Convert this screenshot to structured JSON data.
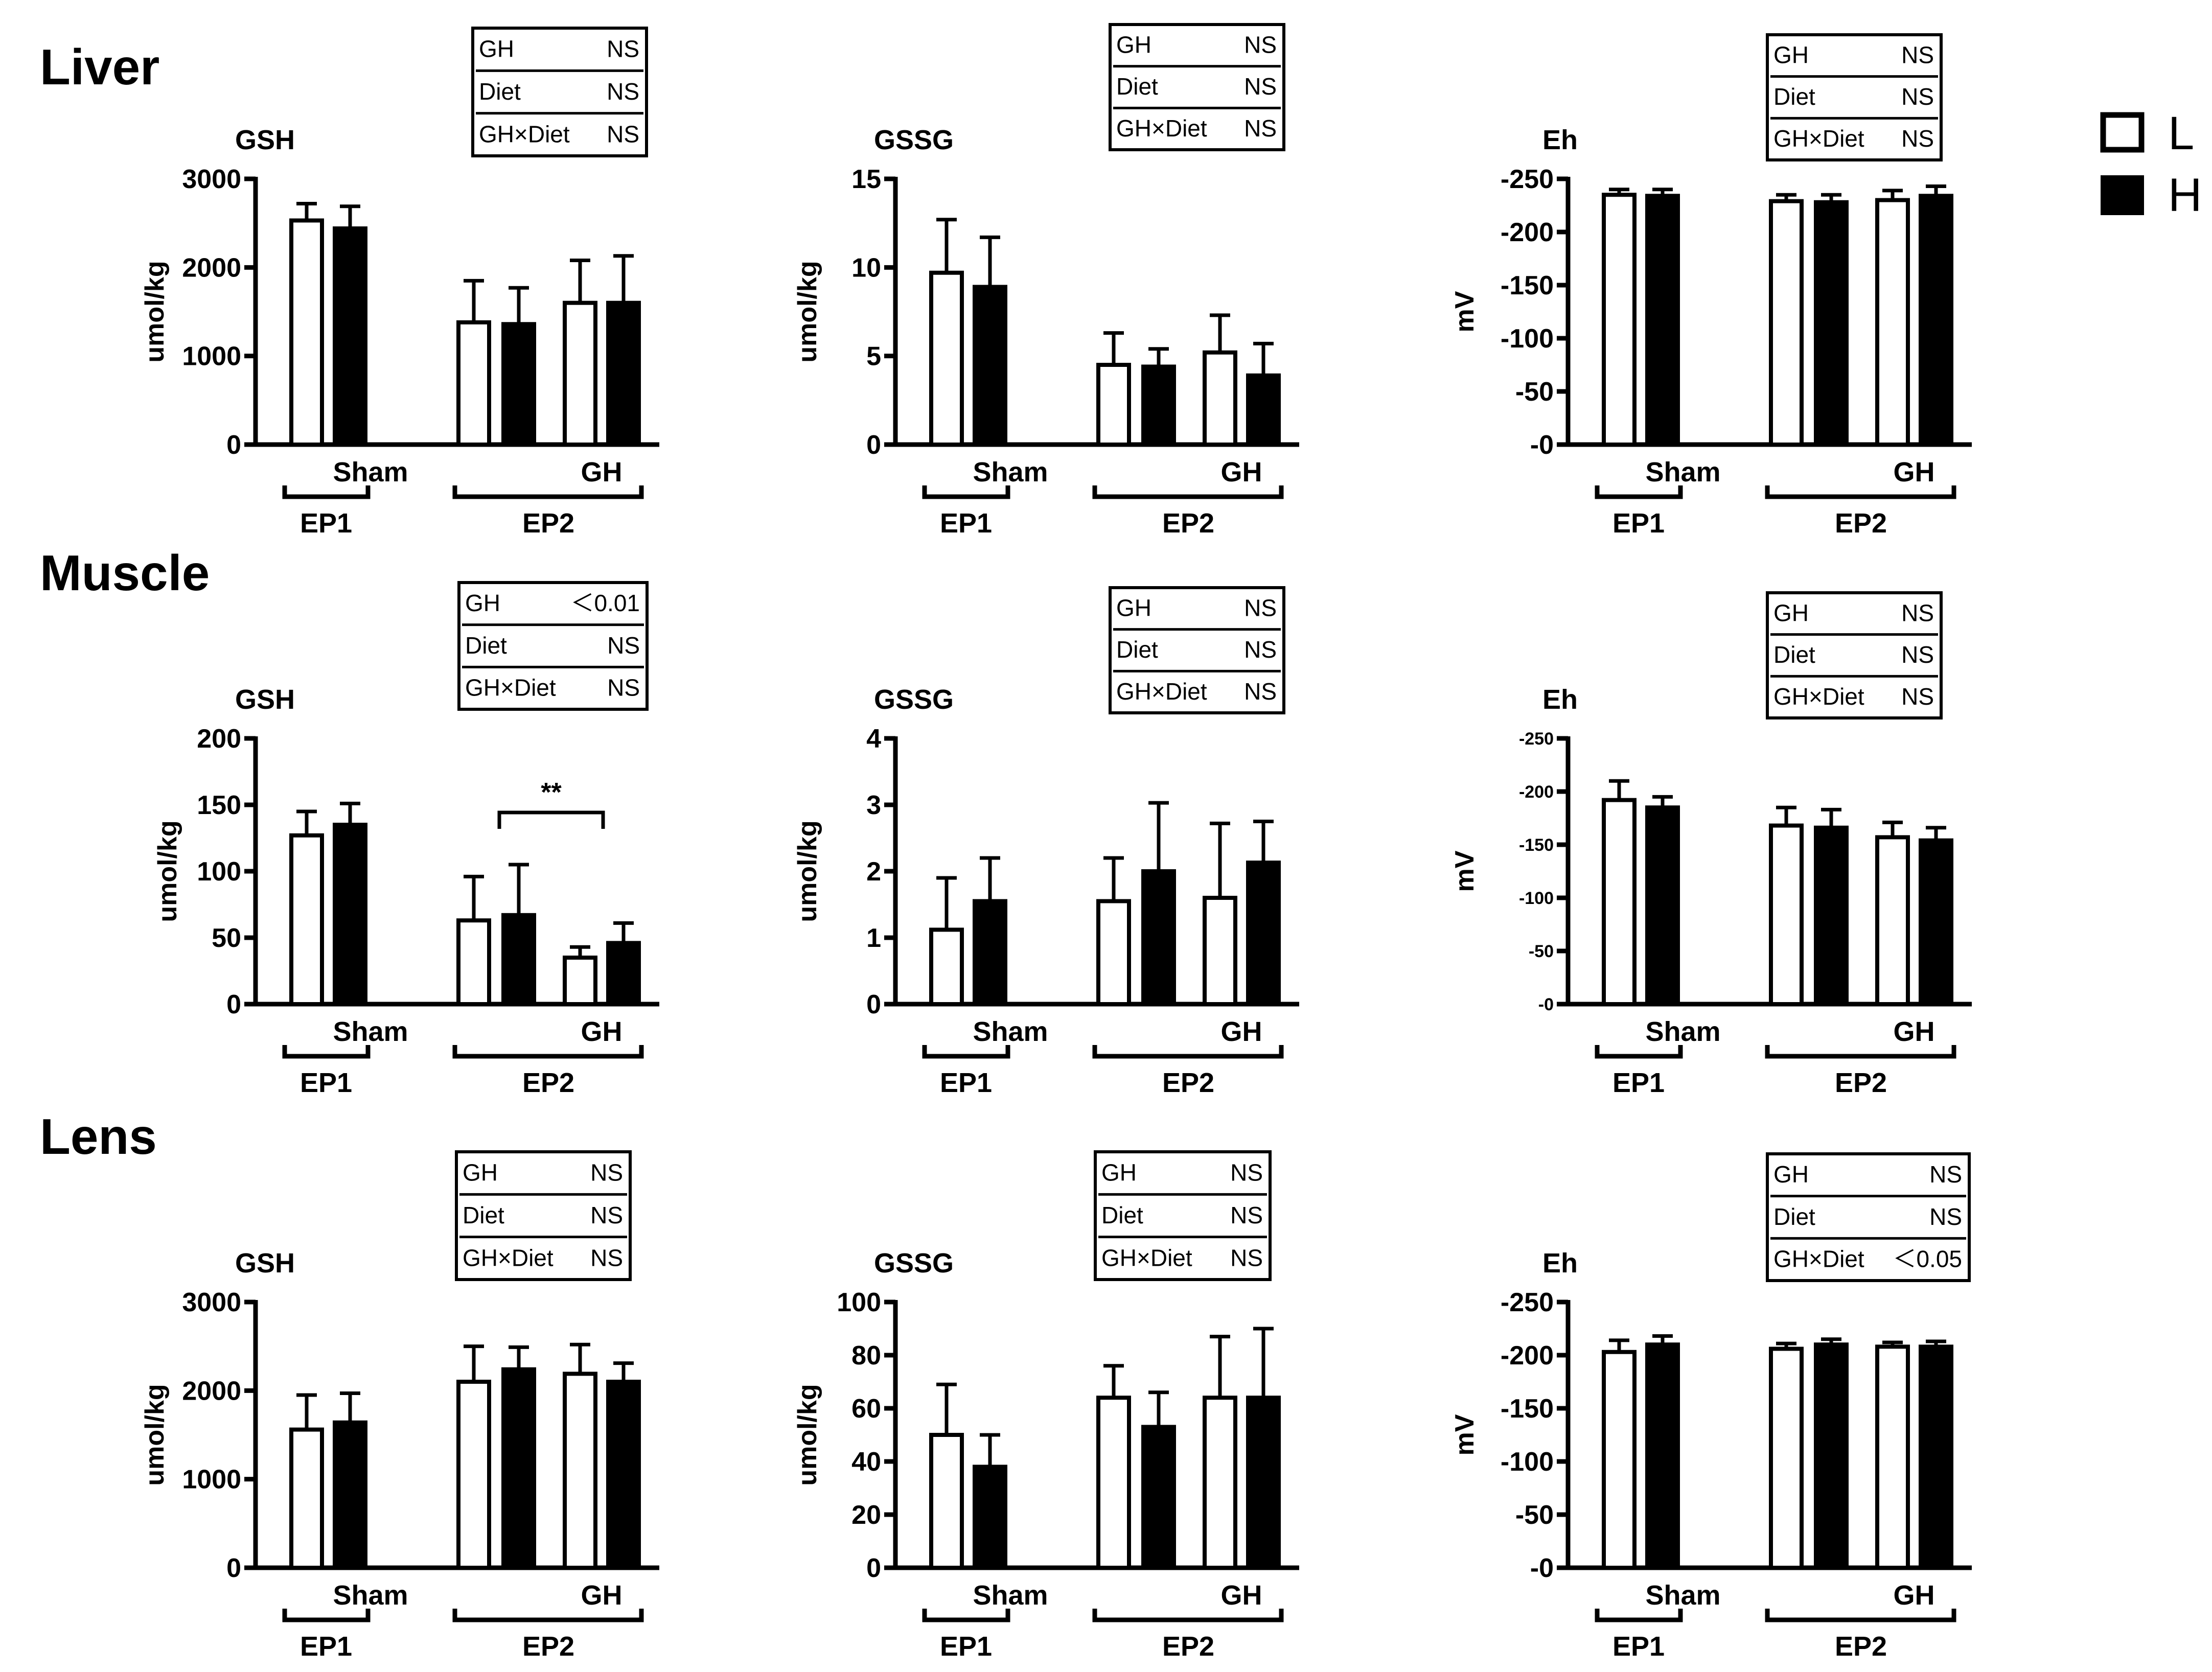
{
  "sections": [
    "Liver",
    "Muscle",
    "Lens"
  ],
  "legend": {
    "items": [
      {
        "label": "L",
        "fill": "#ffffff"
      },
      {
        "label": "H",
        "fill": "#000000"
      }
    ]
  },
  "group_labels": {
    "ep1": "EP1",
    "ep2": "EP2",
    "sham": "Sham",
    "gh": "GH"
  },
  "chart_data": [
    {
      "type": "bar",
      "section": "Liver",
      "title": "GSH",
      "ylabel": "umol/kg",
      "ylim": [
        0,
        3000
      ],
      "yticks": [
        "0",
        "1000",
        "2000",
        "3000"
      ],
      "categories": [
        "EP1",
        "EP2 Sham",
        "EP2 GH"
      ],
      "series": [
        {
          "name": "L",
          "values": [
            2530,
            1380,
            1600
          ],
          "errors": [
            190,
            470,
            480
          ]
        },
        {
          "name": "H",
          "values": [
            2440,
            1360,
            1600
          ],
          "errors": [
            250,
            410,
            530
          ]
        }
      ],
      "stats": [
        [
          "GH",
          "NS"
        ],
        [
          "Diet",
          "NS"
        ],
        [
          "GH×Diet",
          "NS"
        ]
      ]
    },
    {
      "type": "bar",
      "section": "Liver",
      "title": "GSSG",
      "ylabel": "umol/kg",
      "ylim": [
        0,
        15
      ],
      "yticks": [
        "0",
        "5",
        "10",
        "15"
      ],
      "categories": [
        "EP1",
        "EP2 Sham",
        "EP2 GH"
      ],
      "series": [
        {
          "name": "L",
          "values": [
            9.7,
            4.5,
            5.2
          ],
          "errors": [
            3.0,
            1.8,
            2.1
          ]
        },
        {
          "name": "H",
          "values": [
            8.9,
            4.4,
            3.9
          ],
          "errors": [
            2.8,
            1.0,
            1.8
          ]
        }
      ],
      "stats": [
        [
          "GH",
          "NS"
        ],
        [
          "Diet",
          "NS"
        ],
        [
          "GH×Diet",
          "NS"
        ]
      ]
    },
    {
      "type": "bar",
      "section": "Liver",
      "title": "Eh",
      "ylabel": "mV",
      "ylim": [
        0,
        -250
      ],
      "yticks": [
        "-0",
        "-50",
        "-100",
        "-150",
        "-200",
        "-250"
      ],
      "categories": [
        "EP1",
        "EP2 Sham",
        "EP2 GH"
      ],
      "series": [
        {
          "name": "L",
          "values": [
            -235,
            -229,
            -230
          ],
          "errors": [
            5,
            6,
            9
          ]
        },
        {
          "name": "H",
          "values": [
            -234,
            -228,
            -234
          ],
          "errors": [
            6,
            7,
            9
          ]
        }
      ],
      "stats": [
        [
          "GH",
          "NS"
        ],
        [
          "Diet",
          "NS"
        ],
        [
          "GH×Diet",
          "NS"
        ]
      ]
    },
    {
      "type": "bar",
      "section": "Muscle",
      "title": "GSH",
      "ylabel": "umol/kg",
      "ylim": [
        0,
        200
      ],
      "yticks": [
        "0",
        "50",
        "100",
        "150",
        "200"
      ],
      "categories": [
        "EP1",
        "EP2 Sham",
        "EP2 GH"
      ],
      "series": [
        {
          "name": "L",
          "values": [
            127,
            63,
            35
          ],
          "errors": [
            18,
            33,
            8
          ]
        },
        {
          "name": "H",
          "values": [
            135,
            67,
            46
          ],
          "errors": [
            16,
            38,
            15
          ]
        }
      ],
      "significance": {
        "label": "**",
        "between": [
          "EP2 Sham",
          "EP2 GH"
        ]
      },
      "stats": [
        [
          "GH",
          "＜0.01"
        ],
        [
          "Diet",
          "NS"
        ],
        [
          "GH×Diet",
          "NS"
        ]
      ]
    },
    {
      "type": "bar",
      "section": "Muscle",
      "title": "GSSG",
      "ylabel": "umol/kg",
      "ylim": [
        0,
        4
      ],
      "yticks": [
        "0",
        "1",
        "2",
        "3",
        "4"
      ],
      "categories": [
        "EP1",
        "EP2 Sham",
        "EP2 GH"
      ],
      "series": [
        {
          "name": "L",
          "values": [
            1.12,
            1.55,
            1.6
          ],
          "errors": [
            0.78,
            0.65,
            1.12
          ]
        },
        {
          "name": "H",
          "values": [
            1.55,
            2.0,
            2.13
          ],
          "errors": [
            0.65,
            1.03,
            0.62
          ]
        }
      ],
      "stats": [
        [
          "GH",
          "NS"
        ],
        [
          "Diet",
          "NS"
        ],
        [
          "GH×Diet",
          "NS"
        ]
      ]
    },
    {
      "type": "bar",
      "section": "Muscle",
      "title": "Eh",
      "ylabel": "mV",
      "ylim": [
        0,
        -250
      ],
      "yticks": [
        "-0",
        "-50",
        "-100",
        "-150",
        "-200",
        "-250"
      ],
      "tick_style": "small",
      "categories": [
        "EP1",
        "EP2 Sham",
        "EP2 GH"
      ],
      "series": [
        {
          "name": "L",
          "values": [
            -192,
            -168,
            -157
          ],
          "errors": [
            18,
            17,
            14
          ]
        },
        {
          "name": "H",
          "values": [
            -185,
            -166,
            -154
          ],
          "errors": [
            10,
            17,
            12
          ]
        }
      ],
      "stats": [
        [
          "GH",
          "NS"
        ],
        [
          "Diet",
          "NS"
        ],
        [
          "GH×Diet",
          "NS"
        ]
      ]
    },
    {
      "type": "bar",
      "section": "Lens",
      "title": "GSH",
      "ylabel": "umol/kg",
      "ylim": [
        0,
        3000
      ],
      "yticks": [
        "0",
        "1000",
        "2000",
        "3000"
      ],
      "categories": [
        "EP1",
        "EP2 Sham",
        "EP2 GH"
      ],
      "series": [
        {
          "name": "L",
          "values": [
            1560,
            2100,
            2190
          ],
          "errors": [
            390,
            400,
            330
          ]
        },
        {
          "name": "H",
          "values": [
            1640,
            2240,
            2100
          ],
          "errors": [
            330,
            250,
            210
          ]
        }
      ],
      "stats": [
        [
          "GH",
          "NS"
        ],
        [
          "Diet",
          "NS"
        ],
        [
          "GH×Diet",
          "NS"
        ]
      ]
    },
    {
      "type": "bar",
      "section": "Lens",
      "title": "GSSG",
      "ylabel": "umol/kg",
      "ylim": [
        0,
        100
      ],
      "yticks": [
        "0",
        "20",
        "40",
        "60",
        "80",
        "100"
      ],
      "categories": [
        "EP1",
        "EP2 Sham",
        "EP2 GH"
      ],
      "series": [
        {
          "name": "L",
          "values": [
            50,
            64,
            64
          ],
          "errors": [
            19,
            12,
            23
          ]
        },
        {
          "name": "H",
          "values": [
            38,
            53,
            64
          ],
          "errors": [
            12,
            13,
            26
          ]
        }
      ],
      "stats": [
        [
          "GH",
          "NS"
        ],
        [
          "Diet",
          "NS"
        ],
        [
          "GH×Diet",
          "NS"
        ]
      ]
    },
    {
      "type": "bar",
      "section": "Lens",
      "title": "Eh",
      "ylabel": "mV",
      "ylim": [
        0,
        -250
      ],
      "yticks": [
        "-0",
        "-50",
        "-100",
        "-150",
        "-200",
        "-250"
      ],
      "categories": [
        "EP1",
        "EP2 Sham",
        "EP2 GH"
      ],
      "series": [
        {
          "name": "L",
          "values": [
            -203,
            -206,
            -208
          ],
          "errors": [
            11,
            5,
            4
          ]
        },
        {
          "name": "H",
          "values": [
            -210,
            -210,
            -208
          ],
          "errors": [
            8,
            5,
            5
          ]
        }
      ],
      "stats": [
        [
          "GH",
          "NS"
        ],
        [
          "Diet",
          "NS"
        ],
        [
          "GH×Diet",
          "＜0.05"
        ]
      ]
    }
  ]
}
